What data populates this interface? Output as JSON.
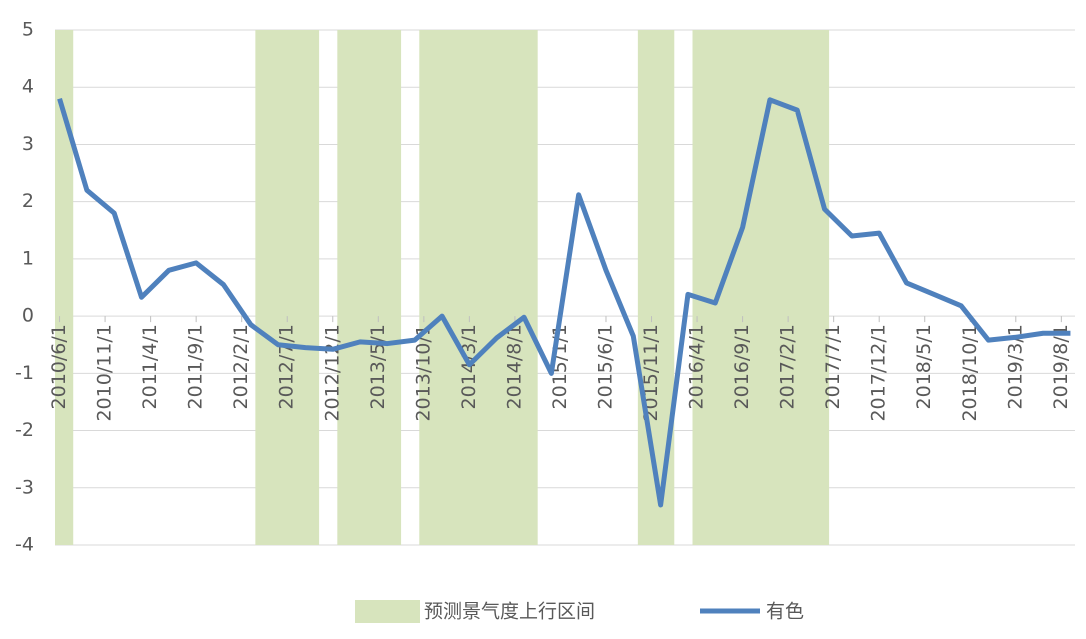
{
  "chart_data": {
    "type": "line",
    "xlim": [
      "2010/6/1",
      "2019/9/1"
    ],
    "xticks": [
      "2010/6/1",
      "2010/11/1",
      "2011/4/1",
      "2011/9/1",
      "2012/2/1",
      "2012/7/1",
      "2012/12/1",
      "2013/5/1",
      "2013/10/1",
      "2014/3/1",
      "2014/8/1",
      "2015/1/1",
      "2015/6/1",
      "2015/11/1",
      "2016/4/1",
      "2016/9/1",
      "2017/2/1",
      "2017/7/1",
      "2017/12/1",
      "2018/5/1",
      "2018/10/1",
      "2019/3/1",
      "2019/8/1"
    ],
    "ylim": [
      -4,
      5
    ],
    "yticks": [
      5,
      4,
      3,
      2,
      1,
      0,
      -1,
      -2,
      -3,
      -4
    ],
    "grid": true,
    "bands": {
      "name": "预测景气度上行区间",
      "color": "#d7e4bd",
      "ranges": [
        [
          "2010/6/1",
          "2010/7/1"
        ],
        [
          "2012/4/1",
          "2012/10/1"
        ],
        [
          "2013/1/1",
          "2013/7/1"
        ],
        [
          "2013/10/1",
          "2014/10/1"
        ],
        [
          "2015/10/1",
          "2016/1/1"
        ],
        [
          "2016/4/1",
          "2017/6/1"
        ]
      ]
    },
    "series": [
      {
        "name": "有色",
        "color": "#4f81bd",
        "x": [
          "2010/6/1",
          "2010/9/1",
          "2010/12/1",
          "2011/3/1",
          "2011/6/1",
          "2011/9/1",
          "2011/12/1",
          "2012/3/1",
          "2012/6/1",
          "2012/9/1",
          "2012/12/1",
          "2013/3/1",
          "2013/6/1",
          "2013/9/1",
          "2013/12/1",
          "2014/3/1",
          "2014/6/1",
          "2014/9/1",
          "2014/12/1",
          "2015/3/1",
          "2015/6/1",
          "2015/9/1",
          "2015/12/1",
          "2016/3/1",
          "2016/6/1",
          "2016/9/1",
          "2016/12/1",
          "2017/3/1",
          "2017/6/1",
          "2017/9/1",
          "2017/12/1",
          "2018/3/1",
          "2018/6/1",
          "2018/9/1",
          "2018/12/1",
          "2019/3/1",
          "2019/6/1",
          "2019/9/1"
        ],
        "values": [
          3.8,
          2.2,
          1.8,
          0.33,
          0.8,
          0.93,
          0.55,
          -0.15,
          -0.5,
          -0.55,
          -0.58,
          -0.45,
          -0.48,
          -0.42,
          0,
          -0.85,
          -0.38,
          -0.02,
          -1.0,
          2.12,
          0.8,
          -0.35,
          -3.3,
          0.38,
          0.23,
          1.55,
          3.78,
          3.6,
          1.87,
          1.4,
          1.45,
          0.58,
          0.38,
          0.18,
          -0.42,
          -0.37,
          -0.3,
          -0.3
        ]
      }
    ]
  }
}
